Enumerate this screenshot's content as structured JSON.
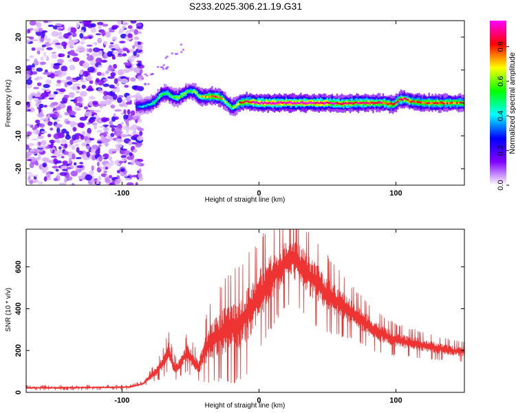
{
  "title": "S233.2025.306.21.19.G31",
  "chart_data": [
    {
      "type": "heatmap",
      "name": "spectrogram",
      "xlabel": "Height of straight line (km)",
      "ylabel": "Frequency (Hz)",
      "xlim": [
        -170,
        150
      ],
      "ylim": [
        -25,
        25
      ],
      "xticks": [
        -100,
        0,
        100
      ],
      "xtick_labels": [
        "-100",
        "0",
        "100"
      ],
      "yticks": [
        -20,
        -10,
        0,
        10,
        20
      ],
      "ytick_labels": [
        "-20",
        "-10",
        "0",
        "10",
        "20"
      ],
      "colorbar": {
        "label": "Normalized spectral amplitude",
        "range": [
          0,
          0.95
        ],
        "ticks": [
          0,
          0.2,
          0.4,
          0.6,
          0.8
        ],
        "tick_labels": [
          "0.0",
          "0.2",
          "0.4",
          "0.6",
          "0.8"
        ],
        "colors": [
          "#ffffff",
          "#8000ff",
          "#0000ff",
          "#00ffff",
          "#00ff00",
          "#ffff00",
          "#ff0000",
          "#ff00ff"
        ]
      },
      "noise_region_x": [
        -170,
        -88
      ],
      "signal_track": {
        "x": [
          -90,
          -85,
          -80,
          -76,
          -72,
          -68,
          -64,
          -60,
          -56,
          -52,
          -48,
          -44,
          -40,
          -36,
          -32,
          -28,
          -24,
          -20,
          -18,
          -15,
          -10,
          -5,
          0,
          10,
          20,
          30,
          40,
          50,
          60,
          70,
          80,
          90,
          98,
          102,
          106,
          110,
          120,
          130,
          140,
          150
        ],
        "y": [
          -1.0,
          -1.0,
          -0.5,
          0.5,
          2.5,
          3.0,
          2.0,
          1.5,
          2.5,
          3.5,
          3.5,
          2.0,
          1.8,
          2.0,
          2.0,
          1.5,
          0.0,
          -1.5,
          -1.0,
          0.0,
          0.5,
          0.2,
          0.0,
          0.0,
          0.0,
          0.0,
          0.0,
          0.0,
          -0.2,
          0.0,
          0.0,
          0.0,
          -0.5,
          1.0,
          1.2,
          0.5,
          0.0,
          0.0,
          0.0,
          0.0
        ],
        "amplitude": [
          0.3,
          0.4,
          0.45,
          0.5,
          0.55,
          0.5,
          0.55,
          0.6,
          0.6,
          0.55,
          0.6,
          0.65,
          0.7,
          0.75,
          0.85,
          0.75,
          0.6,
          0.6,
          0.65,
          0.75,
          0.85,
          0.9,
          0.95,
          0.95,
          0.95,
          0.95,
          0.92,
          0.9,
          0.85,
          0.88,
          0.85,
          0.82,
          0.8,
          0.85,
          0.85,
          0.82,
          0.8,
          0.8,
          0.78,
          0.75
        ]
      }
    },
    {
      "type": "line",
      "name": "snr",
      "xlabel": "Height of straight line (km)",
      "ylabel": "SNR (10 * v/v)",
      "xlim": [
        -170,
        150
      ],
      "ylim": [
        0,
        780
      ],
      "xticks": [
        -100,
        0,
        100
      ],
      "xtick_labels": [
        "-100",
        "0",
        "100"
      ],
      "yticks": [
        0,
        200,
        400,
        600
      ],
      "ytick_labels": [
        "0",
        "200",
        "400",
        "600"
      ],
      "color": "#ee3333",
      "series": [
        {
          "name": "SNR",
          "x": [
            -170,
            -150,
            -130,
            -110,
            -95,
            -85,
            -80,
            -75,
            -70,
            -66,
            -63,
            -60,
            -56,
            -52,
            -48,
            -44,
            -40,
            -36,
            -32,
            -28,
            -24,
            -20,
            -16,
            -12,
            -8,
            -4,
            0,
            4,
            8,
            12,
            16,
            20,
            24,
            28,
            32,
            36,
            40,
            44,
            48,
            52,
            56,
            60,
            64,
            68,
            72,
            76,
            80,
            84,
            88,
            92,
            96,
            100,
            104,
            108,
            112,
            116,
            120,
            124,
            128,
            132,
            136,
            140,
            144,
            150
          ],
          "values": [
            22,
            22,
            23,
            24,
            25,
            40,
            70,
            100,
            140,
            200,
            130,
            110,
            160,
            190,
            150,
            120,
            190,
            240,
            260,
            280,
            300,
            310,
            320,
            350,
            380,
            420,
            460,
            500,
            540,
            570,
            600,
            630,
            640,
            620,
            590,
            560,
            540,
            510,
            480,
            460,
            440,
            420,
            400,
            380,
            360,
            340,
            320,
            300,
            285,
            270,
            260,
            250,
            245,
            240,
            235,
            230,
            225,
            220,
            215,
            210,
            205,
            200,
            198,
            195
          ],
          "spread": [
            8,
            8,
            8,
            8,
            8,
            10,
            20,
            35,
            50,
            70,
            50,
            40,
            55,
            70,
            60,
            50,
            100,
            140,
            160,
            170,
            180,
            190,
            200,
            200,
            210,
            200,
            200,
            190,
            180,
            170,
            160,
            160,
            150,
            160,
            160,
            160,
            150,
            150,
            140,
            130,
            120,
            110,
            100,
            95,
            90,
            85,
            80,
            75,
            70,
            65,
            60,
            55,
            55,
            50,
            50,
            48,
            45,
            45,
            42,
            40,
            40,
            38,
            36,
            35
          ]
        }
      ]
    }
  ]
}
